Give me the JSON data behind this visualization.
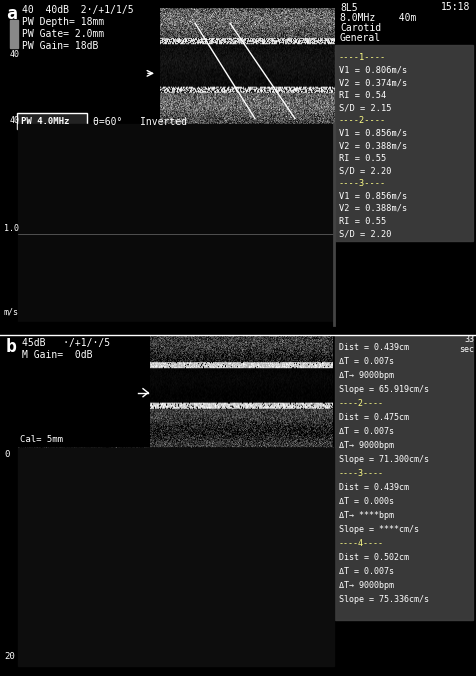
{
  "fig_width": 4.76,
  "fig_height": 6.76,
  "dpi": 100,
  "bg_color": "#000000",
  "panel_a": {
    "label": "a",
    "top_bar_text_left": "40  40dB  2·/+1/1/5",
    "pw_depth": "PW Depth= 18mm",
    "pw_gate": "PW Gate= 2.0mm",
    "pw_gain": "PW Gain= 18dB",
    "time_top_right": "15:18",
    "right_col1": "8L5",
    "right_col2": "8.0MHz    40m",
    "right_col3": "Carotid",
    "right_col4": "General",
    "pw_label": "PW 4.0MHz",
    "theta": "θ=60°   Inverted",
    "scale_40_top": "40",
    "scale_40_bot": "40",
    "meas_lines": [
      [
        "----1----",
        true
      ],
      [
        "V1 = 0.806m/s",
        false
      ],
      [
        "V2 = 0.374m/s",
        false
      ],
      [
        "RI = 0.54",
        false
      ],
      [
        "S/D = 2.15",
        false
      ],
      [
        "----2----",
        true
      ],
      [
        "V1 = 0.856m/s",
        false
      ],
      [
        "V2 = 0.388m/s",
        false
      ],
      [
        "RI = 0.55",
        false
      ],
      [
        "S/D = 2.20",
        false
      ],
      [
        "----3----",
        true
      ],
      [
        "V1 = 0.856m/s",
        false
      ],
      [
        "V2 = 0.388m/s",
        false
      ],
      [
        "RI = 0.55",
        false
      ],
      [
        "S/D = 2.20",
        false
      ]
    ]
  },
  "panel_b": {
    "label": "b",
    "db_text": "45dB   ·/+1/·/5",
    "m_gain": "M Gain=  0dB",
    "time_right": "33\nsec",
    "cal_text": "Cal= 5mm",
    "scale_0": "0",
    "scale_20": "20",
    "b_lines": [
      [
        "Dist = 0.439cm",
        false
      ],
      [
        "ΔT = 0.007s",
        false
      ],
      [
        "ΔT→ 9000bpm",
        false
      ],
      [
        "Slope = 65.919cm/s",
        false
      ],
      [
        "----2----",
        true
      ],
      [
        "Dist = 0.475cm",
        false
      ],
      [
        "ΔT = 0.007s",
        false
      ],
      [
        "ΔT→ 9000bpm",
        false
      ],
      [
        "Slope = 71.300cm/s",
        false
      ],
      [
        "----3----",
        true
      ],
      [
        "Dist = 0.439cm",
        false
      ],
      [
        "ΔT = 0.000s",
        false
      ],
      [
        "ΔT→ ****bpm",
        false
      ],
      [
        "Slope = ****cm/s",
        false
      ],
      [
        "----4----",
        true
      ],
      [
        "Dist = 0.502cm",
        false
      ],
      [
        "ΔT = 0.007s",
        false
      ],
      [
        "ΔT→ 9000bpm",
        false
      ],
      [
        "Slope = 75.336cm/s",
        false
      ]
    ]
  }
}
